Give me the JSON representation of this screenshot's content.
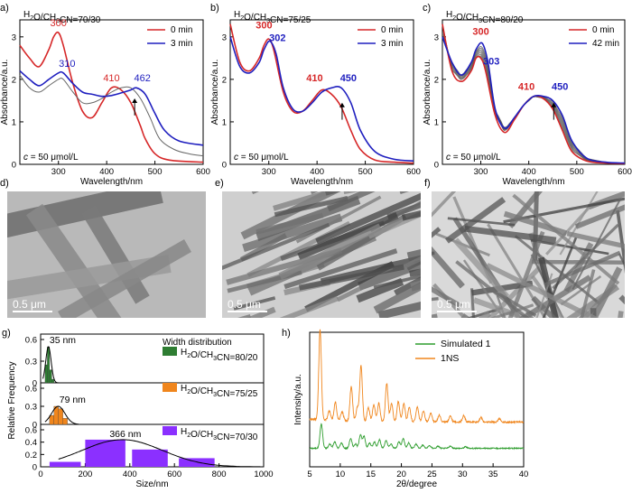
{
  "panel_labels": [
    "a)",
    "b)",
    "c)",
    "d)",
    "e)",
    "f)",
    "g)",
    "h)"
  ],
  "chart_data": [
    {
      "panel": "a)",
      "type": "line",
      "title": "H2O/CH3CN=70/30",
      "xlabel": "Wavelength/nm",
      "ylabel": "Absorbance/a.u.",
      "xlim": [
        220,
        600
      ],
      "ylim": [
        0,
        3.4
      ],
      "xticks": [
        300,
        400,
        500,
        600
      ],
      "yticks": [
        0,
        1,
        2,
        3
      ],
      "legend": [
        "0 min",
        "3 min"
      ],
      "legend_position": "top-right",
      "concentration_label": "c = 50 μmol/L",
      "colors": {
        "0 min": "#d62728",
        "3 min": "#1f1fbf",
        "intermediate": "#666666"
      },
      "series": [
        {
          "name": "0 min",
          "x": [
            220,
            240,
            260,
            280,
            290,
            300,
            310,
            330,
            350,
            370,
            390,
            410,
            430,
            450,
            470,
            480,
            500,
            530,
            600
          ],
          "y": [
            2.8,
            2.5,
            2.3,
            2.7,
            3.0,
            3.1,
            2.8,
            1.9,
            1.25,
            1.1,
            1.45,
            1.8,
            1.75,
            1.45,
            0.9,
            0.6,
            0.25,
            0.1,
            0.05
          ]
        },
        {
          "name": "",
          "x": [
            220,
            240,
            260,
            280,
            300,
            310,
            330,
            350,
            370,
            390,
            410,
            430,
            450,
            470,
            490,
            510,
            540,
            570,
            600
          ],
          "y": [
            2.1,
            1.8,
            1.7,
            1.85,
            2.0,
            2.0,
            1.7,
            1.45,
            1.45,
            1.55,
            1.7,
            1.8,
            1.8,
            1.55,
            1.1,
            0.6,
            0.35,
            0.25,
            0.2
          ]
        },
        {
          "name": "3 min",
          "x": [
            220,
            240,
            260,
            280,
            300,
            310,
            330,
            350,
            370,
            390,
            410,
            430,
            450,
            462,
            480,
            500,
            520,
            550,
            600
          ],
          "y": [
            2.2,
            2.0,
            1.85,
            2.0,
            2.15,
            2.15,
            1.9,
            1.7,
            1.65,
            1.6,
            1.62,
            1.68,
            1.75,
            1.8,
            1.65,
            1.2,
            0.8,
            0.55,
            0.45
          ]
        }
      ],
      "annotations": [
        {
          "text": "300",
          "x": 300,
          "y": 3.25,
          "color": "#d62728"
        },
        {
          "text": "310",
          "x": 318,
          "y": 2.3,
          "color": "#1f1fbf"
        },
        {
          "text": "410",
          "x": 410,
          "y": 1.95,
          "color": "#d62728"
        },
        {
          "text": "462",
          "x": 474,
          "y": 1.95,
          "color": "#1f1fbf"
        }
      ]
    },
    {
      "panel": "b)",
      "type": "line",
      "title": "H2O/CH3CN=75/25",
      "xlabel": "Wavelength/nm",
      "ylabel": "Absorbance/a.u.",
      "xlim": [
        220,
        600
      ],
      "ylim": [
        0,
        3.4
      ],
      "xticks": [
        300,
        400,
        500,
        600
      ],
      "yticks": [
        0,
        1,
        2,
        3
      ],
      "legend": [
        "0 min",
        "3 min"
      ],
      "legend_position": "top-right",
      "concentration_label": "c = 50 μmol/L",
      "colors": {
        "0 min": "#d62728",
        "3 min": "#1f1fbf"
      },
      "series": [
        {
          "name": "0 min",
          "x": [
            220,
            240,
            260,
            280,
            290,
            300,
            310,
            330,
            350,
            370,
            390,
            410,
            430,
            450,
            470,
            490,
            520,
            560,
            600
          ],
          "y": [
            3.3,
            2.4,
            2.2,
            2.5,
            2.8,
            2.95,
            2.7,
            1.7,
            1.25,
            1.25,
            1.5,
            1.75,
            1.65,
            1.35,
            0.8,
            0.35,
            0.1,
            0.05,
            0.03
          ]
        },
        {
          "name": "3 min",
          "x": [
            220,
            240,
            260,
            280,
            290,
            302,
            315,
            330,
            350,
            370,
            390,
            410,
            430,
            450,
            470,
            490,
            520,
            560,
            600
          ],
          "y": [
            3.0,
            2.3,
            2.15,
            2.4,
            2.7,
            2.9,
            2.6,
            1.8,
            1.3,
            1.25,
            1.45,
            1.7,
            1.8,
            1.8,
            1.45,
            0.8,
            0.3,
            0.12,
            0.08
          ]
        }
      ],
      "annotations": [
        {
          "text": "300",
          "x": 290,
          "y": 3.2,
          "color": "#d62728"
        },
        {
          "text": "302",
          "x": 318,
          "y": 2.9,
          "color": "#1f1fbf"
        },
        {
          "text": "410",
          "x": 395,
          "y": 1.95,
          "color": "#d62728"
        },
        {
          "text": "450",
          "x": 465,
          "y": 1.95,
          "color": "#1f1fbf"
        }
      ]
    },
    {
      "panel": "c)",
      "type": "line",
      "title": "H2O/CH3CN=80/20",
      "xlabel": "Wavelength/nm",
      "ylabel": "Absorbance/a.u.",
      "xlim": [
        220,
        600
      ],
      "ylim": [
        0,
        3.4
      ],
      "xticks": [
        300,
        400,
        500,
        600
      ],
      "yticks": [
        0,
        1,
        2,
        3
      ],
      "legend": [
        "0 min",
        "42 min"
      ],
      "legend_position": "top-right",
      "concentration_label": "c = 50 μmol/L",
      "colors": {
        "0 min": "#d62728",
        "42 min": "#1f1fbf",
        "intermediate": "#555555"
      },
      "series": [
        {
          "name": "0 min",
          "x": [
            220,
            240,
            260,
            280,
            290,
            300,
            310,
            330,
            350,
            370,
            390,
            410,
            430,
            450,
            470,
            490,
            520,
            560,
            600
          ],
          "y": [
            3.3,
            2.2,
            1.95,
            2.2,
            2.5,
            2.5,
            2.2,
            1.15,
            0.75,
            1.05,
            1.4,
            1.6,
            1.55,
            1.3,
            0.8,
            0.3,
            0.08,
            0.03,
            0.02
          ]
        },
        {
          "name": "42 min",
          "x": [
            220,
            240,
            260,
            280,
            290,
            303,
            315,
            330,
            350,
            370,
            390,
            410,
            430,
            450,
            470,
            490,
            520,
            560,
            600
          ],
          "y": [
            3.0,
            2.4,
            2.1,
            2.4,
            2.7,
            2.85,
            2.4,
            1.3,
            0.85,
            1.1,
            1.4,
            1.6,
            1.6,
            1.5,
            1.15,
            0.55,
            0.15,
            0.05,
            0.03
          ]
        }
      ],
      "annotations": [
        {
          "text": "300",
          "x": 300,
          "y": 3.05,
          "color": "#d62728"
        },
        {
          "text": "303",
          "x": 322,
          "y": 2.35,
          "color": "#1f1fbf"
        },
        {
          "text": "410",
          "x": 395,
          "y": 1.75,
          "color": "#d62728"
        },
        {
          "text": "450",
          "x": 465,
          "y": 1.75,
          "color": "#1f1fbf"
        }
      ]
    },
    {
      "panel": "g)",
      "type": "bar",
      "title": "Width distribution",
      "xlabel": "Size/nm",
      "ylabel": "Relative Frequency",
      "xlim": [
        0,
        1000
      ],
      "xticks": [
        0,
        200,
        400,
        600,
        800,
        1000
      ],
      "subpanels": [
        {
          "name": "H2O/CH3CN=80/20",
          "color": "#2e7d32",
          "ylim": [
            0,
            0.6
          ],
          "yticks": [
            0,
            0.3,
            0.6
          ],
          "peak_label": "35 nm",
          "bins": [
            {
              "x0": 20,
              "x1": 30,
              "v": 0.25
            },
            {
              "x0": 30,
              "x1": 40,
              "v": 0.5
            },
            {
              "x0": 40,
              "x1": 50,
              "v": 0.18
            },
            {
              "x0": 50,
              "x1": 60,
              "v": 0.05
            }
          ]
        },
        {
          "name": "H2O/CH3CN=75/25",
          "color": "#f0861d",
          "ylim": [
            0,
            0.6
          ],
          "yticks": [
            0,
            0.3,
            0.6
          ],
          "peak_label": "79 nm",
          "bins": [
            {
              "x0": 40,
              "x1": 60,
              "v": 0.15
            },
            {
              "x0": 60,
              "x1": 80,
              "v": 0.3
            },
            {
              "x0": 80,
              "x1": 100,
              "v": 0.26
            },
            {
              "x0": 100,
              "x1": 120,
              "v": 0.1
            }
          ]
        },
        {
          "name": "H2O/CH3CN=70/30",
          "color": "#8b30ff",
          "ylim": [
            0,
            0.6
          ],
          "yticks": [
            0,
            0.2,
            0.4,
            0.6
          ],
          "peak_label": "366 nm",
          "bins": [
            {
              "x0": 40,
              "x1": 180,
              "v": 0.08
            },
            {
              "x0": 200,
              "x1": 380,
              "v": 0.44
            },
            {
              "x0": 410,
              "x1": 570,
              "v": 0.28
            },
            {
              "x0": 620,
              "x1": 780,
              "v": 0.14
            }
          ],
          "fit_peak": 366
        }
      ]
    },
    {
      "panel": "h)",
      "type": "line",
      "xlabel": "2θ/degree",
      "ylabel": "Intensity/a.u.",
      "xlim": [
        5,
        40
      ],
      "xticks": [
        5,
        10,
        15,
        20,
        25,
        30,
        35,
        40
      ],
      "legend": [
        "Simulated 1",
        "1NS"
      ],
      "legend_position": "top-right",
      "colors": {
        "Simulated 1": "#2e9d2e",
        "1NS": "#f0861d"
      },
      "series": [
        {
          "name": "Simulated 1",
          "peaks": [
            [
              6.9,
              0.45
            ],
            [
              8.3,
              0.08
            ],
            [
              9.1,
              0.12
            ],
            [
              10.2,
              0.1
            ],
            [
              11.7,
              0.18
            ],
            [
              12.5,
              0.08
            ],
            [
              13.3,
              0.25
            ],
            [
              13.9,
              0.22
            ],
            [
              14.8,
              0.1
            ],
            [
              15.6,
              0.12
            ],
            [
              16.4,
              0.16
            ],
            [
              17.5,
              0.14
            ],
            [
              18.3,
              0.08
            ],
            [
              19.6,
              0.12
            ],
            [
              20.3,
              0.18
            ],
            [
              21.2,
              0.1
            ],
            [
              22.4,
              0.08
            ],
            [
              23.5,
              0.06
            ],
            [
              24.6,
              0.05
            ],
            [
              26.0,
              0.04
            ],
            [
              28.0,
              0.04
            ],
            [
              30.5,
              0.03
            ]
          ]
        },
        {
          "name": "1NS",
          "peaks": [
            [
              6.7,
              1.0
            ],
            [
              8.2,
              0.1
            ],
            [
              9.2,
              0.2
            ],
            [
              10.3,
              0.1
            ],
            [
              11.8,
              0.38
            ],
            [
              12.8,
              0.15
            ],
            [
              13.4,
              0.62
            ],
            [
              14.6,
              0.15
            ],
            [
              15.5,
              0.18
            ],
            [
              16.3,
              0.2
            ],
            [
              17.6,
              0.42
            ],
            [
              18.4,
              0.2
            ],
            [
              19.5,
              0.22
            ],
            [
              20.4,
              0.2
            ],
            [
              21.3,
              0.16
            ],
            [
              22.6,
              0.16
            ],
            [
              23.6,
              0.12
            ],
            [
              24.8,
              0.1
            ],
            [
              26.2,
              0.08
            ],
            [
              28.0,
              0.07
            ],
            [
              30.2,
              0.07
            ],
            [
              33.0,
              0.05
            ],
            [
              36.0,
              0.04
            ]
          ]
        }
      ]
    }
  ],
  "micrographs": [
    {
      "panel": "d)",
      "scale_label": "0.5 μm"
    },
    {
      "panel": "e)",
      "scale_label": "0.5 μm"
    },
    {
      "panel": "f)",
      "scale_label": "0.5 μm"
    }
  ]
}
